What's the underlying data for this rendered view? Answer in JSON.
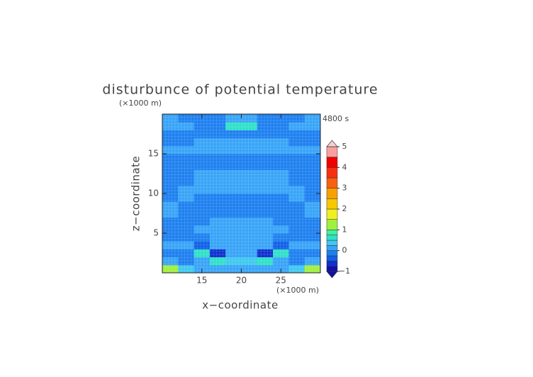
{
  "chart_data": {
    "type": "heatmap",
    "title": "disturbunce of potential temperature",
    "y_unit_label": "(×1000 m)",
    "time_label": "4800 s",
    "x_unit_label": "(×1000 m)",
    "xlabel": "x−coordinate",
    "ylabel": "z−coordinate",
    "xlim": [
      10,
      30
    ],
    "ylim": [
      0,
      20
    ],
    "xticks": [
      15,
      20,
      25
    ],
    "yticks": [
      5,
      10,
      15
    ],
    "x": [
      11,
      13,
      15,
      17,
      19,
      21,
      23,
      25,
      27,
      29
    ],
    "y": [
      0.5,
      1.5,
      2.5,
      3.5,
      4.5,
      5.5,
      6.5,
      7.5,
      8.5,
      9.5,
      10.5,
      11.5,
      12.5,
      13.5,
      14.5,
      15.5,
      16.5,
      17.5,
      18.5,
      19.5
    ],
    "z": [
      [
        1.2,
        0.3,
        0.1,
        0.1,
        0.2,
        0.2,
        0.1,
        0.1,
        0.3,
        1.2
      ],
      [
        0.1,
        -0.1,
        0.2,
        0.6,
        0.4,
        0.4,
        0.6,
        0.2,
        -0.1,
        0.1
      ],
      [
        -0.1,
        -0.2,
        0.6,
        -0.6,
        0.2,
        0.2,
        -0.6,
        0.6,
        -0.2,
        -0.1
      ],
      [
        0.1,
        0.1,
        -0.4,
        0.1,
        0.2,
        0.2,
        0.1,
        -0.4,
        0.1,
        0.1
      ],
      [
        -0.1,
        -0.1,
        -0.1,
        0.1,
        0.1,
        0.1,
        0.1,
        -0.1,
        -0.1,
        -0.1
      ],
      [
        -0.1,
        -0.1,
        0.1,
        0.1,
        0.1,
        0.1,
        0.1,
        0.1,
        -0.1,
        -0.1
      ],
      [
        -0.1,
        -0.1,
        -0.1,
        0.1,
        0.2,
        0.2,
        0.1,
        -0.1,
        -0.1,
        -0.1
      ],
      [
        0.1,
        -0.1,
        -0.1,
        -0.1,
        -0.1,
        -0.1,
        -0.1,
        -0.1,
        -0.1,
        0.1
      ],
      [
        0.1,
        -0.1,
        -0.1,
        -0.1,
        -0.1,
        -0.1,
        -0.1,
        -0.1,
        -0.1,
        0.1
      ],
      [
        -0.1,
        0.1,
        -0.1,
        -0.1,
        -0.1,
        -0.1,
        -0.1,
        -0.1,
        0.1,
        -0.1
      ],
      [
        -0.1,
        0.1,
        0.1,
        0.1,
        0.1,
        0.1,
        0.1,
        0.1,
        0.1,
        -0.1
      ],
      [
        -0.1,
        -0.1,
        0.1,
        0.1,
        0.1,
        0.1,
        0.1,
        0.1,
        -0.1,
        -0.1
      ],
      [
        -0.1,
        -0.1,
        0.1,
        0.1,
        0.1,
        0.1,
        0.1,
        0.1,
        -0.1,
        -0.1
      ],
      [
        -0.1,
        -0.1,
        -0.1,
        -0.1,
        -0.1,
        -0.1,
        -0.1,
        -0.1,
        -0.1,
        -0.1
      ],
      [
        -0.1,
        -0.1,
        -0.1,
        -0.1,
        -0.1,
        -0.1,
        -0.1,
        -0.1,
        -0.1,
        -0.1
      ],
      [
        0.1,
        0.1,
        0.1,
        0.1,
        0.1,
        0.1,
        0.1,
        0.1,
        0.1,
        0.1
      ],
      [
        -0.1,
        -0.1,
        0.1,
        0.1,
        0.1,
        0.1,
        0.1,
        0.1,
        -0.1,
        -0.1
      ],
      [
        -0.1,
        -0.1,
        -0.1,
        -0.1,
        -0.1,
        -0.1,
        -0.1,
        -0.1,
        -0.1,
        -0.1
      ],
      [
        0.1,
        0.1,
        -0.1,
        -0.1,
        0.6,
        0.6,
        -0.1,
        -0.1,
        0.1,
        0.1
      ],
      [
        0.1,
        -0.1,
        -0.1,
        -0.1,
        0.1,
        0.1,
        -0.1,
        -0.1,
        -0.1,
        0.1
      ]
    ],
    "levels": [
      -1,
      -0.75,
      -0.5,
      -0.25,
      0,
      0.25,
      0.5,
      0.75,
      1,
      1.5,
      2,
      2.5,
      3,
      3.5,
      4,
      4.5,
      5
    ],
    "colors": [
      "#1010b0",
      "#1030d0",
      "#1060e8",
      "#1e80f0",
      "#38a4f8",
      "#40c8f0",
      "#30e0c8",
      "#40f0a0",
      "#a0f040",
      "#f0f020",
      "#f8c800",
      "#f8a000",
      "#f86010",
      "#f83010",
      "#f00000",
      "#f8a0a0"
    ],
    "under_color": "#1010a0",
    "over_color": "#f8d0d0",
    "cbticks": [
      {
        "value": -1,
        "label": "−1"
      },
      0,
      1,
      2,
      3,
      4,
      5
    ]
  }
}
